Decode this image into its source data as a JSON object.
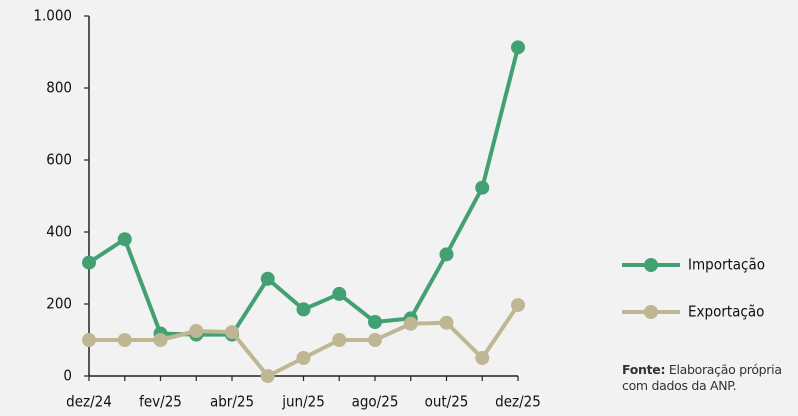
{
  "chart_data": {
    "type": "line",
    "categories": [
      "dez/24",
      null,
      "fev/25",
      null,
      "abr/25",
      null,
      "jun/25",
      null,
      "ago/25",
      null,
      "out/25",
      null,
      "dez/25"
    ],
    "series": [
      {
        "name": "Importação",
        "color": "#43a072",
        "values": [
          315,
          380,
          118,
          115,
          115,
          270,
          185,
          228,
          150,
          160,
          338,
          523,
          913
        ]
      },
      {
        "name": "Exportação",
        "color": "#bfb794",
        "values": [
          100,
          100,
          100,
          125,
          122,
          0,
          50,
          100,
          100,
          145,
          148,
          50,
          197
        ]
      }
    ],
    "ylim": [
      0,
      1000
    ],
    "yticks": [
      0,
      200,
      400,
      600,
      800,
      {
        "value": 1000,
        "label": "1.000"
      }
    ],
    "grid": false,
    "legend": "right",
    "source": {
      "label": "Fonte:",
      "text": "Elaboração própria com dados da ANP."
    }
  }
}
